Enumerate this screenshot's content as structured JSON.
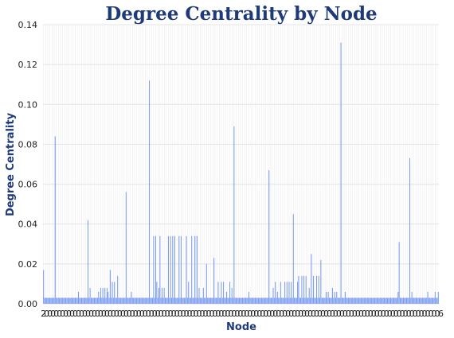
{
  "chart_data": {
    "type": "bar",
    "title": "Degree Centrality by Node",
    "xlabel": "Node",
    "ylabel": "Degree Centrality",
    "ylim": [
      0,
      0.14
    ],
    "yticks": [
      0.0,
      0.02,
      0.04,
      0.06,
      0.08,
      0.1,
      0.12,
      0.14
    ],
    "ytick_labels": [
      "0.00",
      "0.02",
      "0.04",
      "0.06",
      "0.08",
      "0.10",
      "0.12",
      "0.14"
    ],
    "grid": true,
    "bar_color": "#7b9cf0",
    "title_color": "#1f3a7a",
    "first_xtick_label": "2",
    "last_xtick_label": "6",
    "values": [
      0.017,
      0.003,
      0.003,
      0.003,
      0.003,
      0.003,
      0.003,
      0.003,
      0.003,
      0.003,
      0.003,
      0.084,
      0.003,
      0.003,
      0.003,
      0.003,
      0.003,
      0.003,
      0.003,
      0.003,
      0.003,
      0.003,
      0.003,
      0.003,
      0.003,
      0.003,
      0.003,
      0.003,
      0.003,
      0.003,
      0.003,
      0.003,
      0.003,
      0.006,
      0.003,
      0.003,
      0.003,
      0.003,
      0.003,
      0.003,
      0.003,
      0.003,
      0.042,
      0.003,
      0.008,
      0.003,
      0.003,
      0.003,
      0.003,
      0.003,
      0.003,
      0.003,
      0.006,
      0.003,
      0.008,
      0.003,
      0.008,
      0.003,
      0.008,
      0.003,
      0.008,
      0.006,
      0.003,
      0.017,
      0.003,
      0.011,
      0.003,
      0.011,
      0.003,
      0.003,
      0.014,
      0.003,
      0.003,
      0.003,
      0.003,
      0.003,
      0.003,
      0.003,
      0.056,
      0.003,
      0.003,
      0.003,
      0.003,
      0.006,
      0.003,
      0.003,
      0.003,
      0.003,
      0.003,
      0.003,
      0.003,
      0.003,
      0.003,
      0.003,
      0.003,
      0.003,
      0.003,
      0.003,
      0.003,
      0.003,
      0.112,
      0.003,
      0.003,
      0.003,
      0.034,
      0.003,
      0.034,
      0.011,
      0.003,
      0.008,
      0.034,
      0.003,
      0.008,
      0.003,
      0.008,
      0.003,
      0.003,
      0.003,
      0.034,
      0.003,
      0.034,
      0.003,
      0.034,
      0.003,
      0.034,
      0.003,
      0.003,
      0.003,
      0.034,
      0.003,
      0.034,
      0.003,
      0.003,
      0.003,
      0.003,
      0.034,
      0.003,
      0.011,
      0.003,
      0.003,
      0.034,
      0.003,
      0.003,
      0.034,
      0.003,
      0.034,
      0.003,
      0.008,
      0.003,
      0.003,
      0.003,
      0.008,
      0.003,
      0.003,
      0.02,
      0.003,
      0.003,
      0.003,
      0.003,
      0.003,
      0.003,
      0.023,
      0.003,
      0.003,
      0.003,
      0.011,
      0.003,
      0.003,
      0.011,
      0.003,
      0.011,
      0.003,
      0.003,
      0.006,
      0.003,
      0.003,
      0.011,
      0.003,
      0.008,
      0.003,
      0.089,
      0.003,
      0.003,
      0.003,
      0.003,
      0.003,
      0.003,
      0.003,
      0.003,
      0.003,
      0.003,
      0.003,
      0.003,
      0.003,
      0.006,
      0.003,
      0.003,
      0.003,
      0.003,
      0.003,
      0.003,
      0.003,
      0.003,
      0.003,
      0.003,
      0.003,
      0.003,
      0.003,
      0.003,
      0.003,
      0.003,
      0.003,
      0.003,
      0.067,
      0.003,
      0.003,
      0.003,
      0.008,
      0.003,
      0.011,
      0.003,
      0.006,
      0.003,
      0.003,
      0.011,
      0.003,
      0.003,
      0.003,
      0.011,
      0.003,
      0.011,
      0.003,
      0.011,
      0.003,
      0.011,
      0.003,
      0.045,
      0.003,
      0.003,
      0.003,
      0.011,
      0.014,
      0.003,
      0.003,
      0.014,
      0.003,
      0.014,
      0.003,
      0.014,
      0.003,
      0.003,
      0.008,
      0.003,
      0.025,
      0.003,
      0.014,
      0.003,
      0.003,
      0.014,
      0.003,
      0.014,
      0.003,
      0.022,
      0.003,
      0.003,
      0.003,
      0.003,
      0.006,
      0.003,
      0.006,
      0.003,
      0.003,
      0.003,
      0.008,
      0.003,
      0.006,
      0.003,
      0.006,
      0.003,
      0.003,
      0.003,
      0.131,
      0.003,
      0.003,
      0.003,
      0.006,
      0.003,
      0.003,
      0.003,
      0.003,
      0.003,
      0.003,
      0.003,
      0.003,
      0.003,
      0.003,
      0.003,
      0.003,
      0.003,
      0.003,
      0.003,
      0.003,
      0.003,
      0.003,
      0.003,
      0.003,
      0.003,
      0.003,
      0.003,
      0.003,
      0.003,
      0.003,
      0.003,
      0.003,
      0.003,
      0.003,
      0.003,
      0.003,
      0.003,
      0.003,
      0.003,
      0.003,
      0.003,
      0.003,
      0.003,
      0.003,
      0.003,
      0.003,
      0.003,
      0.003,
      0.003,
      0.003,
      0.003,
      0.003,
      0.003,
      0.006,
      0.031,
      0.003,
      0.003,
      0.003,
      0.003,
      0.003,
      0.003,
      0.003,
      0.003,
      0.003,
      0.073,
      0.003,
      0.006,
      0.003,
      0.003,
      0.003,
      0.003,
      0.003,
      0.003,
      0.003,
      0.003,
      0.003,
      0.003,
      0.003,
      0.003,
      0.003,
      0.003,
      0.006,
      0.003,
      0.003,
      0.003,
      0.003,
      0.003,
      0.003,
      0.006,
      0.003,
      0.003,
      0.006
    ]
  }
}
